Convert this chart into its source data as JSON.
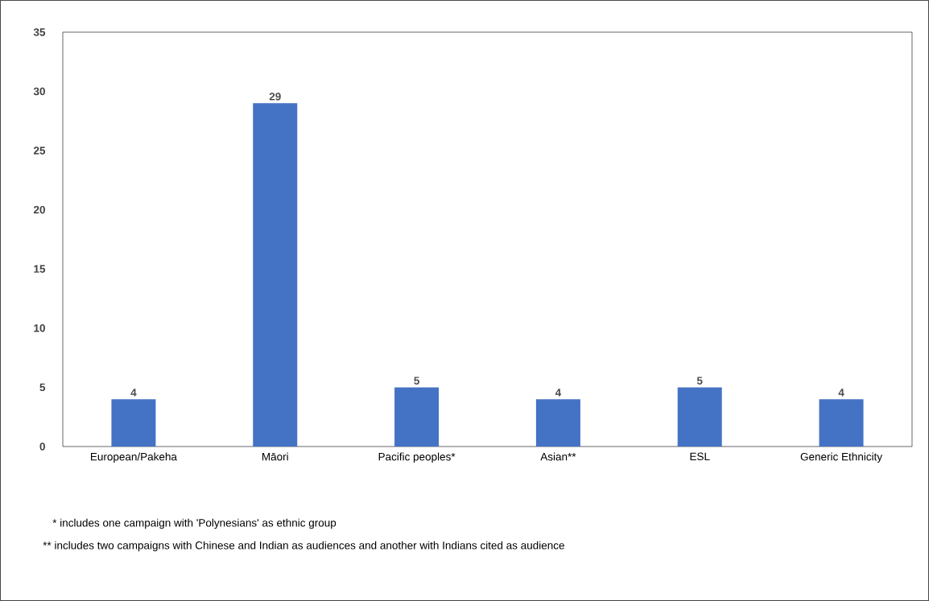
{
  "chart_data": {
    "type": "bar",
    "categories": [
      "European/Pakeha",
      "Māori",
      "Pacific peoples*",
      "Asian**",
      "ESL",
      "Generic Ethnicity"
    ],
    "values": [
      4,
      29,
      5,
      4,
      5,
      4
    ],
    "color": "#4472c4",
    "ylim": [
      0,
      35
    ],
    "yticks": [
      0,
      5,
      10,
      15,
      20,
      25,
      30,
      35
    ],
    "data_labels": true,
    "annotations": [
      "* includes one campaign with 'Polynesians' as ethnic group",
      "** includes two campaigns with Chinese and Indian as audiences and another with Indians cited as audience"
    ]
  }
}
